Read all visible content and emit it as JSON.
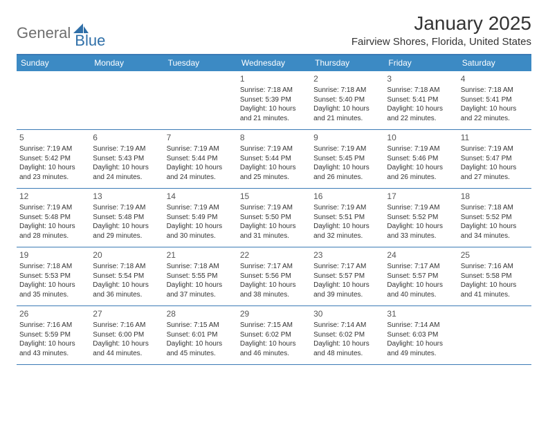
{
  "logo": {
    "text1": "General",
    "text2": "Blue"
  },
  "title": "January 2025",
  "location": "Fairview Shores, Florida, United States",
  "colors": {
    "header_bg": "#3c8ac4",
    "header_text": "#ffffff",
    "rule": "#3a7ab5",
    "body_text": "#333333",
    "logo_gray": "#6e6e6e",
    "logo_blue": "#2f6fa8"
  },
  "dayNames": [
    "Sunday",
    "Monday",
    "Tuesday",
    "Wednesday",
    "Thursday",
    "Friday",
    "Saturday"
  ],
  "weeks": [
    [
      {
        "day": "",
        "sunrise": "",
        "sunset": "",
        "daylight": ""
      },
      {
        "day": "",
        "sunrise": "",
        "sunset": "",
        "daylight": ""
      },
      {
        "day": "",
        "sunrise": "",
        "sunset": "",
        "daylight": ""
      },
      {
        "day": "1",
        "sunrise": "Sunrise: 7:18 AM",
        "sunset": "Sunset: 5:39 PM",
        "daylight": "Daylight: 10 hours and 21 minutes."
      },
      {
        "day": "2",
        "sunrise": "Sunrise: 7:18 AM",
        "sunset": "Sunset: 5:40 PM",
        "daylight": "Daylight: 10 hours and 21 minutes."
      },
      {
        "day": "3",
        "sunrise": "Sunrise: 7:18 AM",
        "sunset": "Sunset: 5:41 PM",
        "daylight": "Daylight: 10 hours and 22 minutes."
      },
      {
        "day": "4",
        "sunrise": "Sunrise: 7:18 AM",
        "sunset": "Sunset: 5:41 PM",
        "daylight": "Daylight: 10 hours and 22 minutes."
      }
    ],
    [
      {
        "day": "5",
        "sunrise": "Sunrise: 7:19 AM",
        "sunset": "Sunset: 5:42 PM",
        "daylight": "Daylight: 10 hours and 23 minutes."
      },
      {
        "day": "6",
        "sunrise": "Sunrise: 7:19 AM",
        "sunset": "Sunset: 5:43 PM",
        "daylight": "Daylight: 10 hours and 24 minutes."
      },
      {
        "day": "7",
        "sunrise": "Sunrise: 7:19 AM",
        "sunset": "Sunset: 5:44 PM",
        "daylight": "Daylight: 10 hours and 24 minutes."
      },
      {
        "day": "8",
        "sunrise": "Sunrise: 7:19 AM",
        "sunset": "Sunset: 5:44 PM",
        "daylight": "Daylight: 10 hours and 25 minutes."
      },
      {
        "day": "9",
        "sunrise": "Sunrise: 7:19 AM",
        "sunset": "Sunset: 5:45 PM",
        "daylight": "Daylight: 10 hours and 26 minutes."
      },
      {
        "day": "10",
        "sunrise": "Sunrise: 7:19 AM",
        "sunset": "Sunset: 5:46 PM",
        "daylight": "Daylight: 10 hours and 26 minutes."
      },
      {
        "day": "11",
        "sunrise": "Sunrise: 7:19 AM",
        "sunset": "Sunset: 5:47 PM",
        "daylight": "Daylight: 10 hours and 27 minutes."
      }
    ],
    [
      {
        "day": "12",
        "sunrise": "Sunrise: 7:19 AM",
        "sunset": "Sunset: 5:48 PM",
        "daylight": "Daylight: 10 hours and 28 minutes."
      },
      {
        "day": "13",
        "sunrise": "Sunrise: 7:19 AM",
        "sunset": "Sunset: 5:48 PM",
        "daylight": "Daylight: 10 hours and 29 minutes."
      },
      {
        "day": "14",
        "sunrise": "Sunrise: 7:19 AM",
        "sunset": "Sunset: 5:49 PM",
        "daylight": "Daylight: 10 hours and 30 minutes."
      },
      {
        "day": "15",
        "sunrise": "Sunrise: 7:19 AM",
        "sunset": "Sunset: 5:50 PM",
        "daylight": "Daylight: 10 hours and 31 minutes."
      },
      {
        "day": "16",
        "sunrise": "Sunrise: 7:19 AM",
        "sunset": "Sunset: 5:51 PM",
        "daylight": "Daylight: 10 hours and 32 minutes."
      },
      {
        "day": "17",
        "sunrise": "Sunrise: 7:19 AM",
        "sunset": "Sunset: 5:52 PM",
        "daylight": "Daylight: 10 hours and 33 minutes."
      },
      {
        "day": "18",
        "sunrise": "Sunrise: 7:18 AM",
        "sunset": "Sunset: 5:52 PM",
        "daylight": "Daylight: 10 hours and 34 minutes."
      }
    ],
    [
      {
        "day": "19",
        "sunrise": "Sunrise: 7:18 AM",
        "sunset": "Sunset: 5:53 PM",
        "daylight": "Daylight: 10 hours and 35 minutes."
      },
      {
        "day": "20",
        "sunrise": "Sunrise: 7:18 AM",
        "sunset": "Sunset: 5:54 PM",
        "daylight": "Daylight: 10 hours and 36 minutes."
      },
      {
        "day": "21",
        "sunrise": "Sunrise: 7:18 AM",
        "sunset": "Sunset: 5:55 PM",
        "daylight": "Daylight: 10 hours and 37 minutes."
      },
      {
        "day": "22",
        "sunrise": "Sunrise: 7:17 AM",
        "sunset": "Sunset: 5:56 PM",
        "daylight": "Daylight: 10 hours and 38 minutes."
      },
      {
        "day": "23",
        "sunrise": "Sunrise: 7:17 AM",
        "sunset": "Sunset: 5:57 PM",
        "daylight": "Daylight: 10 hours and 39 minutes."
      },
      {
        "day": "24",
        "sunrise": "Sunrise: 7:17 AM",
        "sunset": "Sunset: 5:57 PM",
        "daylight": "Daylight: 10 hours and 40 minutes."
      },
      {
        "day": "25",
        "sunrise": "Sunrise: 7:16 AM",
        "sunset": "Sunset: 5:58 PM",
        "daylight": "Daylight: 10 hours and 41 minutes."
      }
    ],
    [
      {
        "day": "26",
        "sunrise": "Sunrise: 7:16 AM",
        "sunset": "Sunset: 5:59 PM",
        "daylight": "Daylight: 10 hours and 43 minutes."
      },
      {
        "day": "27",
        "sunrise": "Sunrise: 7:16 AM",
        "sunset": "Sunset: 6:00 PM",
        "daylight": "Daylight: 10 hours and 44 minutes."
      },
      {
        "day": "28",
        "sunrise": "Sunrise: 7:15 AM",
        "sunset": "Sunset: 6:01 PM",
        "daylight": "Daylight: 10 hours and 45 minutes."
      },
      {
        "day": "29",
        "sunrise": "Sunrise: 7:15 AM",
        "sunset": "Sunset: 6:02 PM",
        "daylight": "Daylight: 10 hours and 46 minutes."
      },
      {
        "day": "30",
        "sunrise": "Sunrise: 7:14 AM",
        "sunset": "Sunset: 6:02 PM",
        "daylight": "Daylight: 10 hours and 48 minutes."
      },
      {
        "day": "31",
        "sunrise": "Sunrise: 7:14 AM",
        "sunset": "Sunset: 6:03 PM",
        "daylight": "Daylight: 10 hours and 49 minutes."
      },
      {
        "day": "",
        "sunrise": "",
        "sunset": "",
        "daylight": ""
      }
    ]
  ]
}
